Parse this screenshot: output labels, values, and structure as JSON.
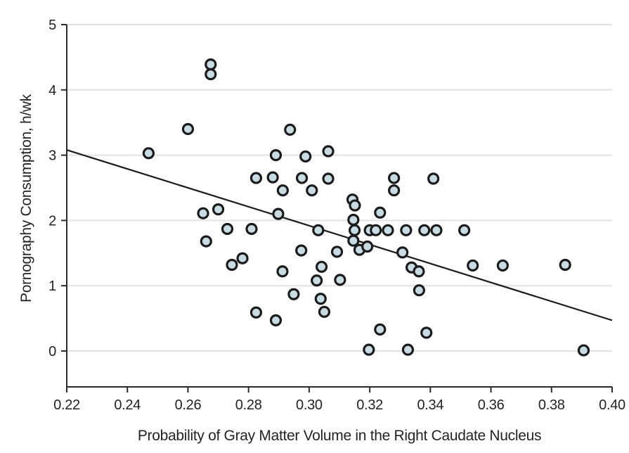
{
  "chart_data": {
    "type": "scatter",
    "title": "",
    "xlabel": "Probability of Gray Matter Volume in the Right Caudate Nucleus",
    "ylabel": "Pornography Consumption, h/wk",
    "xlim": [
      0.22,
      0.4
    ],
    "ylim": [
      -0.55,
      5
    ],
    "x_ticks": [
      0.22,
      0.24,
      0.26,
      0.28,
      0.3,
      0.32,
      0.34,
      0.36,
      0.38,
      0.4
    ],
    "x_tick_labels": [
      "0.22",
      "0.24",
      "0.26",
      "0.28",
      "0.30",
      "0.32",
      "0.34",
      "0.36",
      "0.38",
      "0.40"
    ],
    "y_ticks": [
      0,
      1,
      2,
      3,
      4,
      5
    ],
    "y_tick_labels": [
      "0",
      "1",
      "2",
      "3",
      "4",
      "5"
    ],
    "grid": "horizontal",
    "legend": "none",
    "n_points": 64,
    "points": [
      [
        0.247,
        3.03
      ],
      [
        0.26,
        3.4
      ],
      [
        0.2675,
        4.39
      ],
      [
        0.2675,
        4.24
      ],
      [
        0.265,
        2.11
      ],
      [
        0.27,
        2.17
      ],
      [
        0.266,
        1.68
      ],
      [
        0.273,
        1.87
      ],
      [
        0.281,
        1.87
      ],
      [
        0.2745,
        1.32
      ],
      [
        0.278,
        1.42
      ],
      [
        0.2825,
        2.65
      ],
      [
        0.288,
        2.66
      ],
      [
        0.2825,
        0.59
      ],
      [
        0.289,
        0.47
      ],
      [
        0.289,
        3.0
      ],
      [
        0.2937,
        3.39
      ],
      [
        0.2913,
        2.46
      ],
      [
        0.2898,
        2.1
      ],
      [
        0.2912,
        1.22
      ],
      [
        0.2949,
        0.87
      ],
      [
        0.2974,
        1.54
      ],
      [
        0.2976,
        2.65
      ],
      [
        0.2988,
        2.98
      ],
      [
        0.3009,
        2.46
      ],
      [
        0.303,
        1.85
      ],
      [
        0.3025,
        1.08
      ],
      [
        0.3041,
        1.29
      ],
      [
        0.3038,
        0.8
      ],
      [
        0.305,
        0.6
      ],
      [
        0.3063,
        3.06
      ],
      [
        0.3063,
        2.64
      ],
      [
        0.3092,
        1.52
      ],
      [
        0.3102,
        1.09
      ],
      [
        0.3143,
        2.32
      ],
      [
        0.3151,
        2.23
      ],
      [
        0.3146,
        2.01
      ],
      [
        0.315,
        1.85
      ],
      [
        0.3146,
        1.69
      ],
      [
        0.3166,
        1.55
      ],
      [
        0.3192,
        1.6
      ],
      [
        0.32,
        1.85
      ],
      [
        0.322,
        1.85
      ],
      [
        0.3197,
        0.02
      ],
      [
        0.3234,
        2.12
      ],
      [
        0.3234,
        0.33
      ],
      [
        0.326,
        1.85
      ],
      [
        0.328,
        2.65
      ],
      [
        0.328,
        2.46
      ],
      [
        0.3308,
        1.51
      ],
      [
        0.332,
        1.85
      ],
      [
        0.3326,
        0.02
      ],
      [
        0.3338,
        1.28
      ],
      [
        0.3362,
        1.22
      ],
      [
        0.3363,
        0.93
      ],
      [
        0.338,
        1.85
      ],
      [
        0.3387,
        0.28
      ],
      [
        0.341,
        2.64
      ],
      [
        0.342,
        1.85
      ],
      [
        0.3512,
        1.85
      ],
      [
        0.354,
        1.31
      ],
      [
        0.3639,
        1.31
      ],
      [
        0.3845,
        1.32
      ],
      [
        0.3906,
        0.01
      ]
    ],
    "trend_line": {
      "x_start": 0.22,
      "y_start": 3.08,
      "x_end": 0.4,
      "y_end": 0.47
    },
    "colors": {
      "marker_fill": "#c9dbe2",
      "marker_stroke": "#1b1b1b",
      "trend_line": "#1b1b1b",
      "grid_line": "#e2e2e2",
      "axis_line": "#2b2b2b",
      "text": "#232323",
      "background": "#ffffff"
    }
  }
}
